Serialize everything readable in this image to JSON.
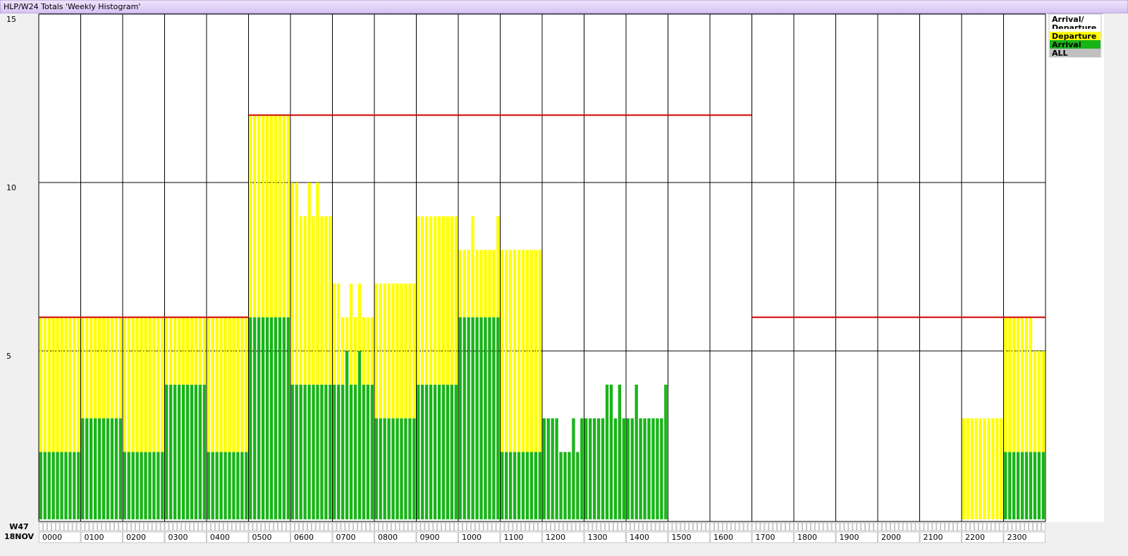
{
  "chart_data": {
    "type": "stacked_bar",
    "title": "HLP/W24 Totals 'Weekly Histogram'",
    "week_label": "W47",
    "date_label": "18NOV",
    "legend_title": "Arrival/ Departure",
    "categories": [
      "0000",
      null,
      null,
      null,
      null,
      null,
      null,
      null,
      null,
      null,
      "0100",
      null,
      null,
      null,
      null,
      null,
      null,
      null,
      null,
      null,
      "0200",
      null,
      null,
      null,
      null,
      null,
      null,
      null,
      null,
      null,
      "0300",
      null,
      null,
      null,
      null,
      null,
      null,
      null,
      null,
      null,
      "0400",
      null,
      null,
      null,
      null,
      null,
      null,
      null,
      null,
      null,
      "0500",
      null,
      null,
      null,
      null,
      null,
      null,
      null,
      null,
      null,
      "0600",
      null,
      null,
      null,
      null,
      null,
      null,
      null,
      null,
      null,
      "0700",
      null,
      null,
      null,
      null,
      null,
      null,
      null,
      null,
      null,
      "0800",
      null,
      null,
      null,
      null,
      null,
      null,
      null,
      null,
      null,
      "0900",
      null,
      null,
      null,
      null,
      null,
      null,
      null,
      null,
      null,
      "1000",
      null,
      null,
      null,
      null,
      null,
      null,
      null,
      null,
      null,
      "1100",
      null,
      null,
      null,
      null,
      null,
      null,
      null,
      null,
      null,
      "1200",
      null,
      null,
      null,
      null,
      null,
      null,
      null,
      null,
      null,
      "1300",
      null,
      null,
      null,
      null,
      null,
      null,
      null,
      null,
      null,
      "1400",
      null,
      null,
      null,
      null,
      null,
      null,
      null,
      null,
      null,
      "1500",
      null,
      null,
      null,
      null,
      null,
      null,
      null,
      null,
      null,
      "1600",
      null,
      null,
      null,
      null,
      null,
      null,
      null,
      null,
      null,
      "1700",
      null,
      null,
      null,
      null,
      null,
      null,
      null,
      null,
      null,
      "1800",
      null,
      null,
      null,
      null,
      null,
      null,
      null,
      null,
      null,
      "1900",
      null,
      null,
      null,
      null,
      null,
      null,
      null,
      null,
      null,
      "2000",
      null,
      null,
      null,
      null,
      null,
      null,
      null,
      null,
      null,
      "2100",
      null,
      null,
      null,
      null,
      null,
      null,
      null,
      null,
      null,
      "2200",
      null,
      null,
      null,
      null,
      null,
      null,
      null,
      null,
      null,
      "2300",
      null,
      null,
      null,
      null,
      null,
      null,
      null,
      null,
      null
    ],
    "series": [
      {
        "name": "Arrival",
        "color": "#18b418",
        "values": [
          2,
          2,
          2,
          2,
          2,
          2,
          2,
          2,
          2,
          2,
          3,
          3,
          3,
          3,
          3,
          3,
          3,
          3,
          3,
          3,
          2,
          2,
          2,
          2,
          2,
          2,
          2,
          2,
          2,
          2,
          4,
          4,
          4,
          4,
          4,
          4,
          4,
          4,
          4,
          4,
          2,
          2,
          2,
          2,
          2,
          2,
          2,
          2,
          2,
          2,
          6,
          6,
          6,
          6,
          6,
          6,
          6,
          6,
          6,
          6,
          4,
          4,
          4,
          4,
          4,
          4,
          4,
          4,
          4,
          4,
          4,
          4,
          4,
          5,
          4,
          4,
          5,
          4,
          4,
          4,
          3,
          3,
          3,
          3,
          3,
          3,
          3,
          3,
          3,
          3,
          4,
          4,
          4,
          4,
          4,
          4,
          4,
          4,
          4,
          4,
          6,
          6,
          6,
          6,
          6,
          6,
          6,
          6,
          6,
          6,
          2,
          2,
          2,
          2,
          2,
          2,
          2,
          2,
          2,
          2,
          3,
          3,
          3,
          3,
          2,
          2,
          2,
          3,
          2,
          3,
          3,
          3,
          3,
          3,
          3,
          4,
          4,
          3,
          4,
          3,
          3,
          3,
          4,
          3,
          3,
          3,
          3,
          3,
          3,
          4,
          0,
          0,
          0,
          0,
          0,
          0,
          0,
          0,
          0,
          0,
          0,
          0,
          0,
          0,
          0,
          0,
          0,
          0,
          0,
          0,
          0,
          0,
          0,
          0,
          0,
          0,
          0,
          0,
          0,
          0,
          0,
          0,
          0,
          0,
          0,
          0,
          0,
          0,
          0,
          0,
          0,
          0,
          0,
          0,
          0,
          0,
          0,
          0,
          0,
          0,
          0,
          0,
          0,
          0,
          0,
          0,
          0,
          0,
          0,
          0,
          0,
          0,
          0,
          0,
          0,
          0,
          0,
          0,
          0,
          0,
          0,
          0,
          0,
          0,
          0,
          0,
          0,
          0,
          0,
          0,
          2,
          2,
          2,
          2,
          2,
          2,
          2,
          2,
          2,
          2
        ]
      },
      {
        "name": "Departure",
        "color": "#ffff00",
        "values": [
          4,
          4,
          4,
          4,
          4,
          4,
          4,
          4,
          4,
          4,
          3,
          3,
          3,
          3,
          3,
          3,
          3,
          3,
          3,
          3,
          4,
          4,
          4,
          4,
          4,
          4,
          4,
          4,
          4,
          4,
          2,
          2,
          2,
          2,
          2,
          2,
          2,
          2,
          2,
          2,
          4,
          4,
          4,
          4,
          4,
          4,
          4,
          4,
          4,
          4,
          6,
          6,
          6,
          6,
          6,
          6,
          6,
          6,
          6,
          6,
          6,
          6,
          5,
          5,
          6,
          5,
          6,
          5,
          5,
          5,
          3,
          3,
          2,
          1,
          3,
          2,
          2,
          2,
          2,
          2,
          4,
          4,
          4,
          4,
          4,
          4,
          4,
          4,
          4,
          4,
          5,
          5,
          5,
          5,
          5,
          5,
          5,
          5,
          5,
          5,
          2,
          2,
          2,
          3,
          2,
          2,
          2,
          2,
          2,
          3,
          6,
          6,
          6,
          6,
          6,
          6,
          6,
          6,
          6,
          6,
          0,
          0,
          0,
          0,
          0,
          0,
          0,
          0,
          0,
          0,
          0,
          0,
          0,
          0,
          0,
          0,
          0,
          0,
          0,
          0,
          0,
          0,
          0,
          0,
          0,
          0,
          0,
          0,
          0,
          0,
          0,
          0,
          0,
          0,
          0,
          0,
          0,
          0,
          0,
          0,
          0,
          0,
          0,
          0,
          0,
          0,
          0,
          0,
          0,
          0,
          0,
          0,
          0,
          0,
          0,
          0,
          0,
          0,
          0,
          0,
          0,
          0,
          0,
          0,
          0,
          0,
          0,
          0,
          0,
          0,
          0,
          0,
          0,
          0,
          0,
          0,
          0,
          0,
          0,
          0,
          0,
          0,
          0,
          0,
          0,
          0,
          0,
          0,
          0,
          0,
          0,
          0,
          0,
          0,
          0,
          0,
          0,
          0,
          0,
          0,
          3,
          3,
          3,
          3,
          3,
          3,
          3,
          3,
          3,
          3,
          4,
          4,
          4,
          4,
          4,
          4,
          4,
          3,
          3,
          3
        ]
      }
    ],
    "legend_extra": [
      {
        "name": "ALL",
        "color": "#c0c0c0"
      }
    ],
    "capacity": {
      "color": "#d00000",
      "values": [
        6,
        6,
        6,
        6,
        6,
        12,
        12,
        12,
        12,
        12,
        12,
        12,
        12,
        12,
        12,
        12,
        12,
        6,
        6,
        6,
        6,
        6,
        6,
        6
      ]
    },
    "ylim": [
      0,
      15
    ],
    "yticks": [
      5,
      10,
      15
    ],
    "grid": true
  }
}
